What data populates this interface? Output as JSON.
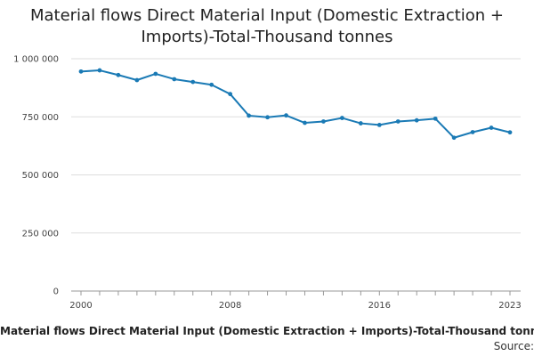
{
  "page": {
    "caption": "Material flows Direct Material Input (Domestic Extraction + Imports)-Total-Thousand tonnes",
    "source_label": "Source:"
  },
  "chart_data": {
    "type": "line",
    "title": "Material flows Direct Material Input (Domestic Extraction + Imports)-Total-Thousand tonnes",
    "xlabel": "",
    "ylabel": "",
    "x": [
      2000,
      2001,
      2002,
      2003,
      2004,
      2005,
      2006,
      2007,
      2008,
      2009,
      2010,
      2011,
      2012,
      2013,
      2014,
      2015,
      2016,
      2017,
      2018,
      2019,
      2020,
      2021,
      2022,
      2023
    ],
    "series": [
      {
        "name": "Direct Material Input",
        "color": "#1a7ab5",
        "values": [
          945000,
          950000,
          930000,
          908000,
          935000,
          912000,
          900000,
          888000,
          848000,
          755000,
          748000,
          756000,
          724000,
          730000,
          745000,
          722000,
          715000,
          730000,
          735000,
          742000,
          660000,
          684000,
          703000,
          683000
        ]
      }
    ],
    "x_ticks": [
      2000,
      2008,
      2016,
      2023
    ],
    "x_tick_labels": [
      "2000",
      "2008",
      "2016",
      "2023"
    ],
    "y_ticks": [
      0,
      250000,
      500000,
      750000,
      1000000
    ],
    "y_tick_labels": [
      "0",
      "250 000",
      "500 000",
      "750 000",
      "1 000 000"
    ],
    "ylim": [
      0,
      1000000
    ],
    "xlim": [
      2000,
      2023
    ],
    "grid": true,
    "legend": "none"
  }
}
